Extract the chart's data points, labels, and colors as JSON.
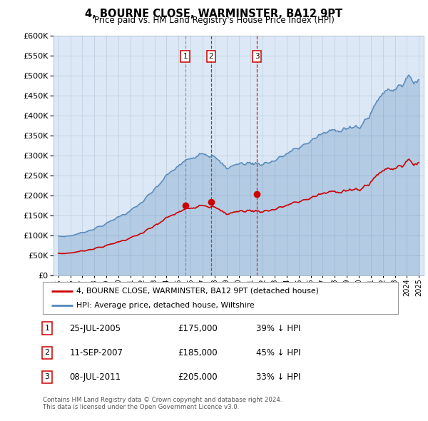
{
  "title": "4, BOURNE CLOSE, WARMINSTER, BA12 9PT",
  "subtitle": "Price paid vs. HM Land Registry's House Price Index (HPI)",
  "hpi_color": "#5588bb",
  "price_color": "#cc0000",
  "background_color": "#dce8f5",
  "ylim": [
    0,
    600000
  ],
  "yticks": [
    0,
    50000,
    100000,
    150000,
    200000,
    250000,
    300000,
    350000,
    400000,
    450000,
    500000,
    550000,
    600000
  ],
  "transactions": [
    {
      "label": "1",
      "date": "25-JUL-2005",
      "price": 175000,
      "pct": "39% ↓ HPI",
      "date_num": 2005.56,
      "vline_color": "#888888"
    },
    {
      "label": "2",
      "date": "11-SEP-2007",
      "price": 185000,
      "pct": "45% ↓ HPI",
      "date_num": 2007.7,
      "vline_color": "#cc0000"
    },
    {
      "label": "3",
      "date": "08-JUL-2011",
      "price": 205000,
      "pct": "33% ↓ HPI",
      "date_num": 2011.52,
      "vline_color": "#cc0000"
    }
  ],
  "legend_property": "4, BOURNE CLOSE, WARMINSTER, BA12 9PT (detached house)",
  "legend_hpi": "HPI: Average price, detached house, Wiltshire",
  "footer1": "Contains HM Land Registry data © Crown copyright and database right 2024.",
  "footer2": "This data is licensed under the Open Government Licence v3.0."
}
